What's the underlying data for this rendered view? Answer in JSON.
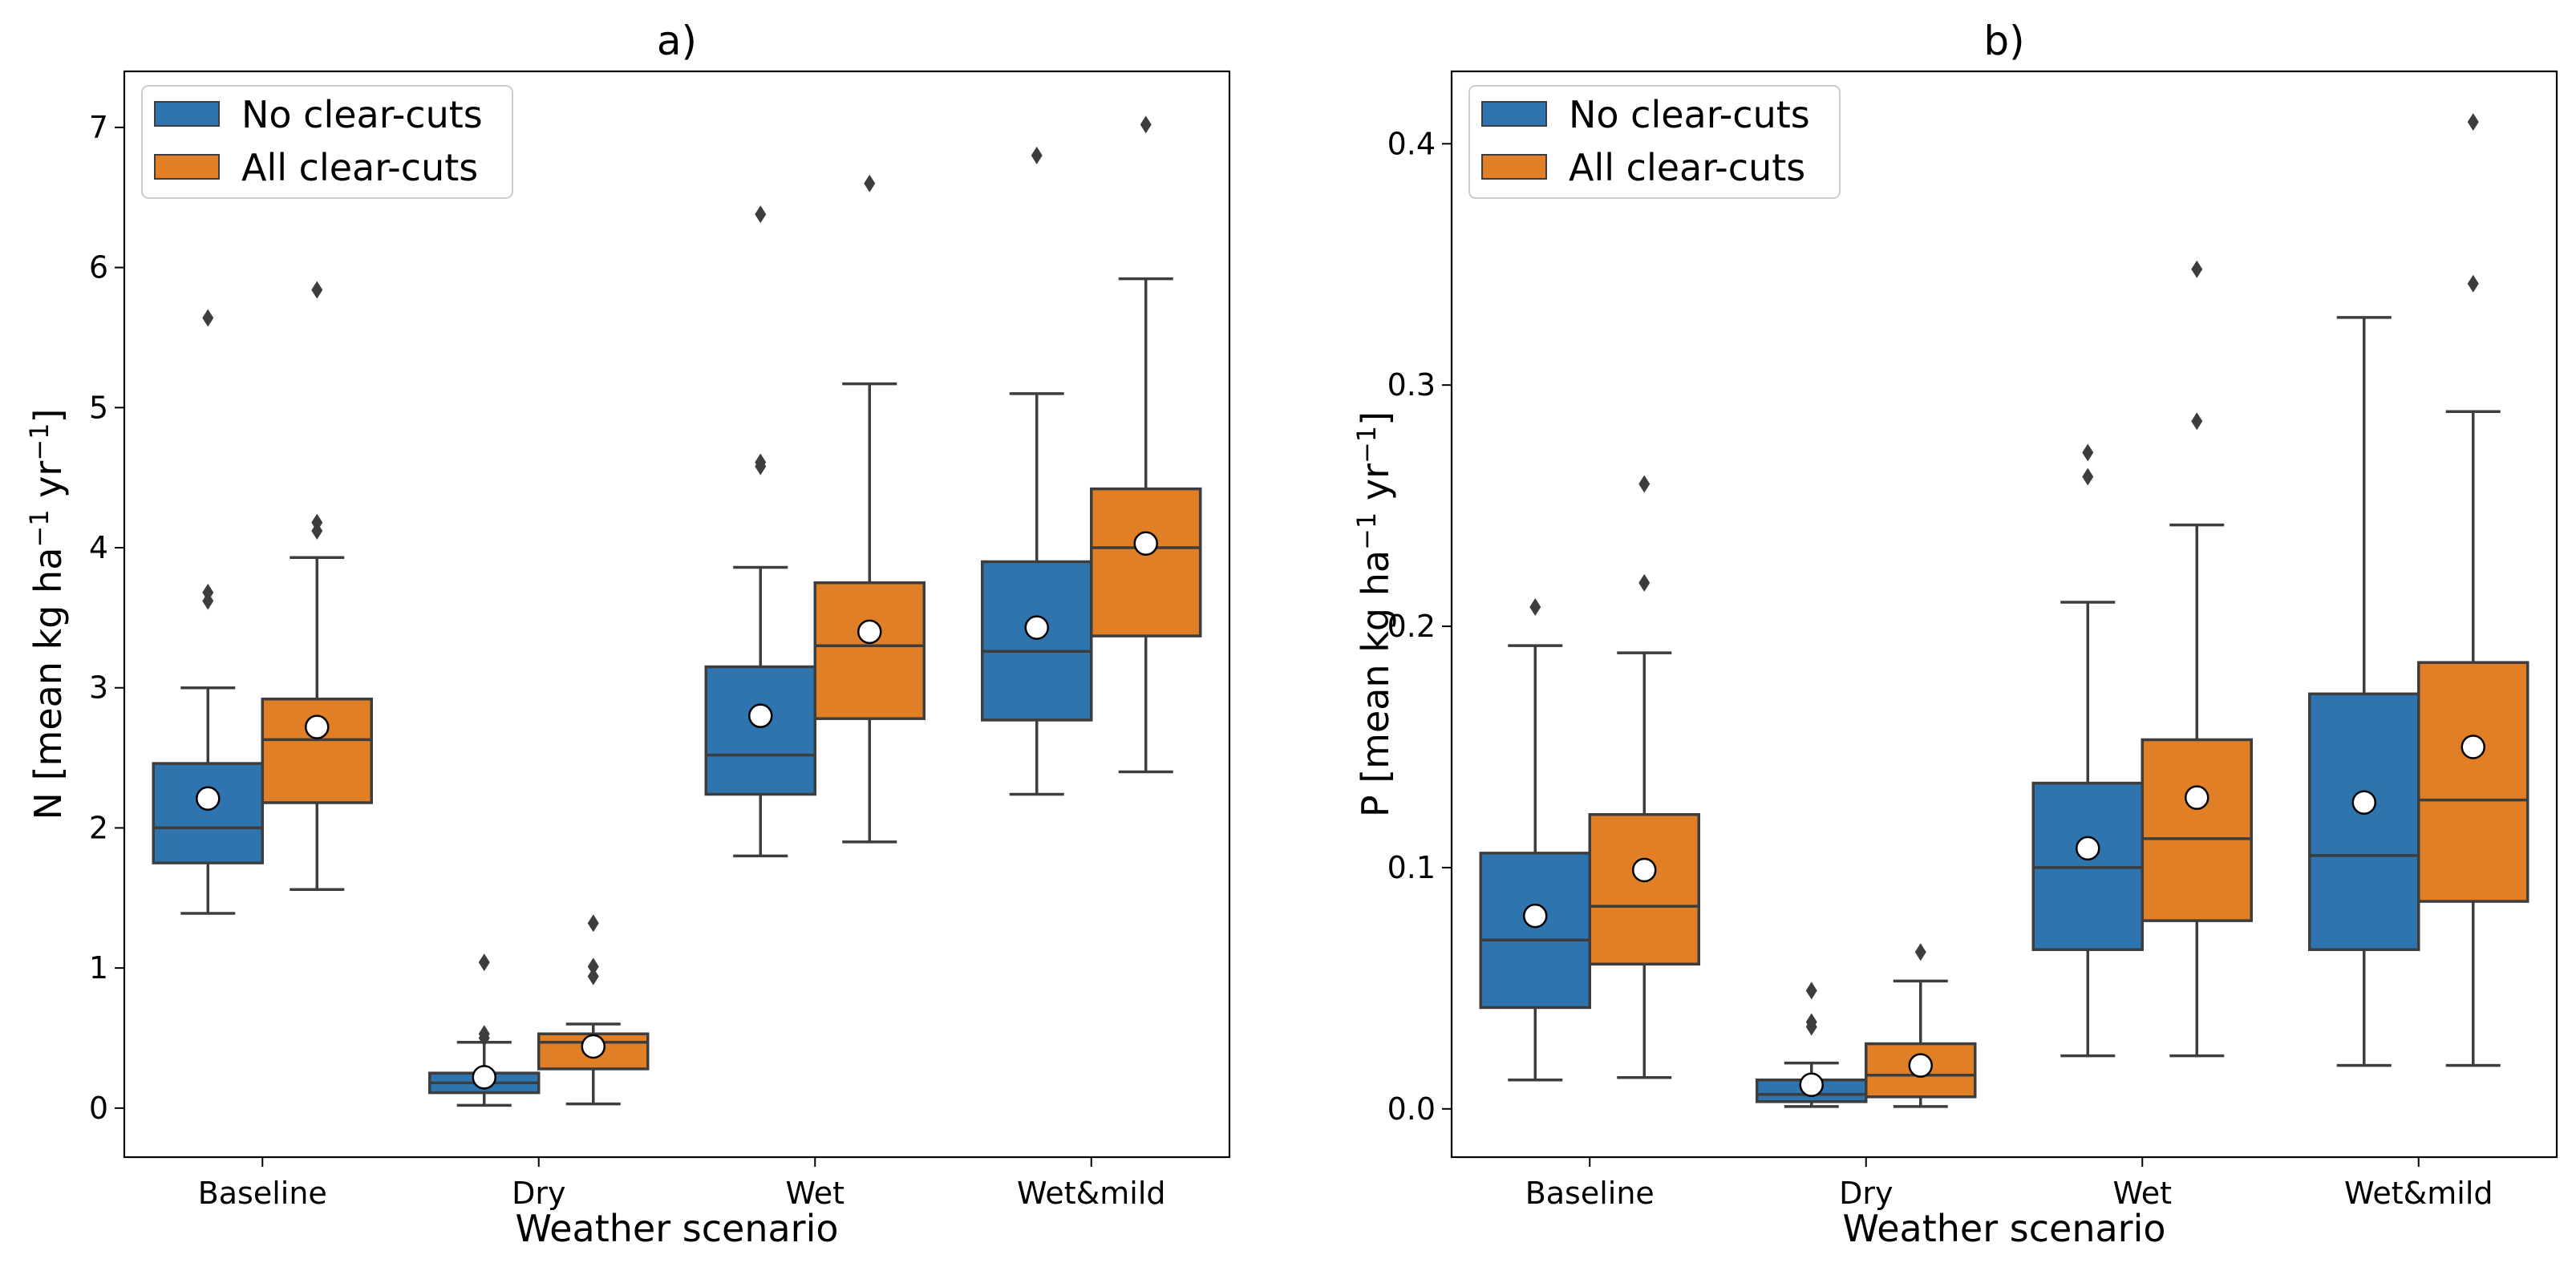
{
  "colors": {
    "no_clearcuts": "#2e75b0",
    "all_clearcuts": "#e07f26",
    "whisker": "#3d3d3d",
    "mean_marker_fill": "#ffffff",
    "mean_marker_edge": "#000000"
  },
  "chart_data": [
    {
      "type": "box",
      "title": "a)",
      "xlabel": "Weather scenario",
      "ylabel_main": "N [mean kg ha",
      "ylabel_sup1": "−1",
      "ylabel_mid": " yr",
      "ylabel_sup2": "−1",
      "ylabel_end": "]",
      "categories": [
        "Baseline",
        "Dry",
        "Wet",
        "Wet&mild"
      ],
      "ylim": [
        -0.35,
        7.4
      ],
      "yticks": [
        0,
        1,
        2,
        3,
        4,
        5,
        6,
        7
      ],
      "ytick_labels": [
        "0",
        "1",
        "2",
        "3",
        "4",
        "5",
        "6",
        "7"
      ],
      "legend": {
        "position": "upper left",
        "entries": [
          "No clear-cuts",
          "All clear-cuts"
        ]
      },
      "series": [
        {
          "name": "No clear-cuts",
          "boxes": [
            {
              "whislo": 1.39,
              "q1": 1.75,
              "med": 2.0,
              "q3": 2.46,
              "whishi": 3.0,
              "mean": 2.21,
              "fliers": [
                3.62,
                3.68,
                5.64
              ]
            },
            {
              "whislo": 0.02,
              "q1": 0.11,
              "med": 0.18,
              "q3": 0.25,
              "whishi": 0.47,
              "mean": 0.22,
              "fliers": [
                0.5,
                0.53,
                1.04
              ]
            },
            {
              "whislo": 1.8,
              "q1": 2.24,
              "med": 2.52,
              "q3": 3.15,
              "whishi": 3.86,
              "mean": 2.8,
              "fliers": [
                4.58,
                4.61,
                6.38
              ]
            },
            {
              "whislo": 2.24,
              "q1": 2.77,
              "med": 3.26,
              "q3": 3.9,
              "whishi": 5.1,
              "mean": 3.43,
              "fliers": [
                6.8
              ]
            }
          ]
        },
        {
          "name": "All clear-cuts",
          "boxes": [
            {
              "whislo": 1.56,
              "q1": 2.18,
              "med": 2.63,
              "q3": 2.92,
              "whishi": 3.93,
              "mean": 2.72,
              "fliers": [
                4.12,
                4.18,
                5.84
              ]
            },
            {
              "whislo": 0.03,
              "q1": 0.28,
              "med": 0.47,
              "q3": 0.53,
              "whishi": 0.6,
              "mean": 0.44,
              "fliers": [
                0.94,
                1.01,
                1.32
              ]
            },
            {
              "whislo": 1.9,
              "q1": 2.78,
              "med": 3.3,
              "q3": 3.75,
              "whishi": 5.17,
              "mean": 3.4,
              "fliers": [
                6.6
              ]
            },
            {
              "whislo": 2.4,
              "q1": 3.37,
              "med": 4.0,
              "q3": 4.42,
              "whishi": 5.92,
              "mean": 4.03,
              "fliers": [
                7.02
              ]
            }
          ]
        }
      ]
    },
    {
      "type": "box",
      "title": "b)",
      "xlabel": "Weather scenario",
      "ylabel_main": "P [mean kg ha",
      "ylabel_sup1": "−1",
      "ylabel_mid": " yr",
      "ylabel_sup2": "−1",
      "ylabel_end": "]",
      "categories": [
        "Baseline",
        "Dry",
        "Wet",
        "Wet&mild"
      ],
      "ylim": [
        -0.02,
        0.43
      ],
      "yticks": [
        0.0,
        0.1,
        0.2,
        0.3,
        0.4
      ],
      "ytick_labels": [
        "0.0",
        "0.1",
        "0.2",
        "0.3",
        "0.4"
      ],
      "legend": {
        "position": "upper left",
        "entries": [
          "No clear-cuts",
          "All clear-cuts"
        ]
      },
      "series": [
        {
          "name": "No clear-cuts",
          "boxes": [
            {
              "whislo": 0.012,
              "q1": 0.042,
              "med": 0.07,
              "q3": 0.106,
              "whishi": 0.192,
              "mean": 0.08,
              "fliers": [
                0.208
              ]
            },
            {
              "whislo": 0.001,
              "q1": 0.003,
              "med": 0.006,
              "q3": 0.012,
              "whishi": 0.019,
              "mean": 0.01,
              "fliers": [
                0.034,
                0.036,
                0.049
              ]
            },
            {
              "whislo": 0.022,
              "q1": 0.066,
              "med": 0.1,
              "q3": 0.135,
              "whishi": 0.21,
              "mean": 0.108,
              "fliers": [
                0.262,
                0.272
              ]
            },
            {
              "whislo": 0.018,
              "q1": 0.066,
              "med": 0.105,
              "q3": 0.172,
              "whishi": 0.328,
              "mean": 0.127,
              "fliers": []
            }
          ]
        },
        {
          "name": "All clear-cuts",
          "boxes": [
            {
              "whislo": 0.013,
              "q1": 0.06,
              "med": 0.084,
              "q3": 0.122,
              "whishi": 0.189,
              "mean": 0.099,
              "fliers": [
                0.218,
                0.259
              ]
            },
            {
              "whislo": 0.001,
              "q1": 0.005,
              "med": 0.014,
              "q3": 0.027,
              "whishi": 0.053,
              "mean": 0.018,
              "fliers": [
                0.065
              ]
            },
            {
              "whislo": 0.022,
              "q1": 0.078,
              "med": 0.112,
              "q3": 0.153,
              "whishi": 0.242,
              "mean": 0.129,
              "fliers": [
                0.285,
                0.348
              ]
            },
            {
              "whislo": 0.018,
              "q1": 0.086,
              "med": 0.128,
              "q3": 0.185,
              "whishi": 0.289,
              "mean": 0.15,
              "fliers": [
                0.342,
                0.409
              ]
            }
          ]
        }
      ]
    }
  ]
}
